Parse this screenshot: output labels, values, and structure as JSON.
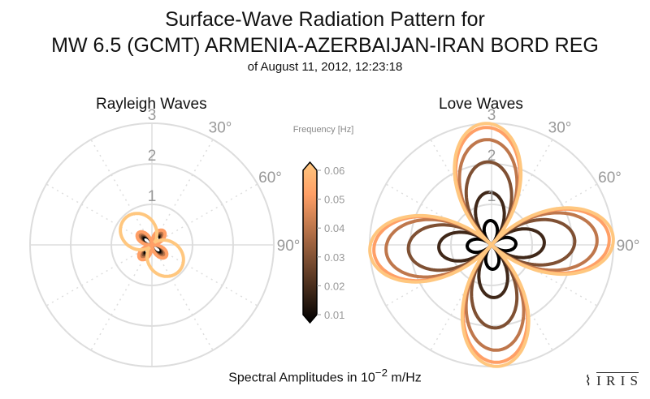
{
  "chart_data": [
    {
      "type": "polar-line",
      "title": "Rayleigh Waves",
      "rlim": [
        0,
        3
      ],
      "r_ticks": [
        "1",
        "2",
        "3"
      ],
      "theta_ticks": [
        "30°",
        "60°",
        "90°"
      ],
      "theta_zero": "north",
      "theta_direction": "clockwise",
      "grid": true,
      "series": [
        {
          "frequency": 0.01,
          "pattern": "four-lobe",
          "amplitude": 0.28,
          "orientation_deg": 40
        },
        {
          "frequency": 0.02,
          "pattern": "four-lobe",
          "amplitude": 0.33,
          "orientation_deg": 40
        },
        {
          "frequency": 0.03,
          "pattern": "four-lobe",
          "amplitude": 0.36,
          "orientation_deg": 40
        },
        {
          "frequency": 0.04,
          "pattern": "four-lobe",
          "amplitude": 0.4,
          "orientation_deg": 40
        },
        {
          "frequency": 0.05,
          "pattern": "four-lobe",
          "amplitude": 0.45,
          "orientation_deg": 40
        },
        {
          "frequency": 0.06,
          "pattern": "two-lobe",
          "amplitude": 0.85,
          "orientation_deg": 135
        }
      ]
    },
    {
      "type": "polar-line",
      "title": "Love Waves",
      "rlim": [
        0,
        3
      ],
      "r_ticks": [
        "1",
        "2",
        "3"
      ],
      "theta_ticks": [
        "30°",
        "60°",
        "90°"
      ],
      "theta_zero": "north",
      "theta_direction": "clockwise",
      "grid": true,
      "series": [
        {
          "frequency": 0.01,
          "pattern": "four-lobe",
          "amplitude": 0.6,
          "orientation_deg": -3
        },
        {
          "frequency": 0.02,
          "pattern": "four-lobe",
          "amplitude": 1.3,
          "orientation_deg": -3
        },
        {
          "frequency": 0.03,
          "pattern": "four-lobe",
          "amplitude": 2.05,
          "orientation_deg": -3
        },
        {
          "frequency": 0.04,
          "pattern": "four-lobe",
          "amplitude": 2.6,
          "orientation_deg": -3
        },
        {
          "frequency": 0.05,
          "pattern": "four-lobe",
          "amplitude": 2.9,
          "orientation_deg": -3
        },
        {
          "frequency": 0.06,
          "pattern": "four-lobe",
          "amplitude": 3.0,
          "orientation_deg": -3
        }
      ]
    }
  ],
  "title_line1": "Surface-Wave Radiation Pattern for",
  "title_line2": "MW 6.5 (GCMT) ARMENIA-AZERBAIJAN-IRAN BORD REG",
  "title_line3": "of August 11, 2012, 12:23:18",
  "colorbar": {
    "label": "Frequency [Hz]",
    "ticks": [
      "0.01",
      "0.02",
      "0.03",
      "0.04",
      "0.05",
      "0.06"
    ],
    "range": [
      0.01,
      0.06
    ],
    "color_low": "#000000",
    "color_high": "#ffc77f"
  },
  "xlabel_prefix": "Spectral Amplitudes in 10",
  "xlabel_exp": "−2",
  "xlabel_suffix": " m/Hz",
  "logo": "IRIS"
}
